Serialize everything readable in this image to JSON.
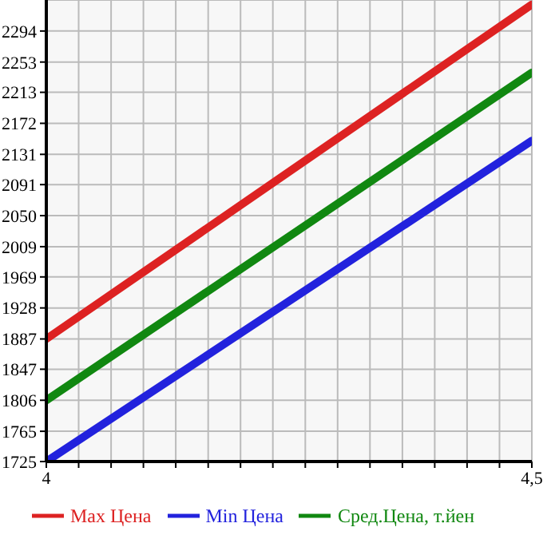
{
  "chart_data": {
    "type": "line",
    "x": [
      4,
      4.5
    ],
    "series": [
      {
        "name": "Max Цена",
        "color": "#dd2222",
        "values": [
          1887,
          2329
        ]
      },
      {
        "name": "Min Цена",
        "color": "#2222dd",
        "values": [
          1725,
          2149
        ]
      },
      {
        "name": "Сред.Цена, т.йен",
        "color": "#118811",
        "values": [
          1806,
          2239
        ]
      }
    ],
    "xlim": [
      4,
      4.5
    ],
    "xticks": [
      4,
      {
        "value": 4.0333,
        "label": null
      },
      {
        "value": 4.0667,
        "label": null
      },
      {
        "value": 4.1,
        "label": null
      },
      {
        "value": 4.1333,
        "label": null
      },
      {
        "value": 4.1667,
        "label": null
      },
      {
        "value": 4.2,
        "label": null
      },
      {
        "value": 4.2333,
        "label": null
      },
      {
        "value": 4.2667,
        "label": null
      },
      {
        "value": 4.3,
        "label": null
      },
      {
        "value": 4.3333,
        "label": null
      },
      {
        "value": 4.3667,
        "label": null
      },
      {
        "value": 4.4,
        "label": null
      },
      {
        "value": 4.4333,
        "label": null
      },
      {
        "value": 4.4667,
        "label": null
      },
      {
        "value": 4.5,
        "label": "4,5"
      }
    ],
    "ylim": [
      1725,
      2335
    ],
    "yticks": [
      1725,
      1765,
      1806,
      1847,
      1887,
      1928,
      1969,
      2009,
      2050,
      2091,
      2131,
      2172,
      2213,
      2253,
      2294
    ],
    "grid": true,
    "legend": "bottom"
  }
}
